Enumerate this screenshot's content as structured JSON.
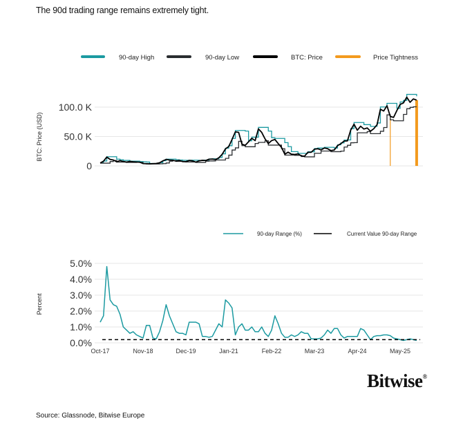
{
  "title": "The 90d trading range remains extremely tight.",
  "source": "Source: Glassnode, Bitwise Europe",
  "logo": {
    "text": "Bitwise",
    "mark": "®"
  },
  "colors": {
    "high": "#1b9aa1",
    "low": "#2a2d30",
    "price": "#000000",
    "tightness": "#f39a1e",
    "range": "#1b9aa1",
    "current": "#000000",
    "grid": "#e6e6e6"
  },
  "chart_data": [
    {
      "type": "line",
      "ylabel": "BTC: Price (USD)",
      "ylim": [
        0,
        125000
      ],
      "yticks": [
        {
          "value": 0,
          "label": "0"
        },
        {
          "value": 50000,
          "label": "50.0 K"
        },
        {
          "value": 100000,
          "label": "100.0 K"
        }
      ],
      "grid": true,
      "legend_position": "top",
      "legend": [
        "90-day High",
        "90-day Low",
        "BTC: Price",
        "Price Tightness"
      ],
      "x_start": "2017-10",
      "x_step": "month",
      "series": [
        {
          "name": "BTC: Price",
          "values": [
            5000,
            8000,
            15000,
            11000,
            10000,
            7000,
            9000,
            7500,
            6400,
            7700,
            7000,
            6600,
            6300,
            4000,
            3700,
            3450,
            3800,
            4100,
            5300,
            8500,
            11000,
            10000,
            9600,
            8300,
            9200,
            7500,
            7200,
            9300,
            8600,
            6400,
            8600,
            9500,
            9100,
            11300,
            11600,
            10800,
            13800,
            19700,
            29000,
            33000,
            45000,
            58000,
            57000,
            37000,
            35000,
            41000,
            47000,
            43000,
            63000,
            57000,
            46000,
            38000,
            43000,
            45000,
            38000,
            31500,
            19800,
            23300,
            20000,
            19400,
            20500,
            17100,
            16500,
            23100,
            23100,
            28400,
            29200,
            27200,
            30400,
            29200,
            26000,
            27000,
            34500,
            37700,
            42300,
            42500,
            61000,
            71000,
            60600,
            67500,
            62700,
            64600,
            59000,
            63300,
            70200,
            96400,
            93400,
            102400,
            84300,
            82500,
            94200,
            104600,
            107100,
            117000,
            108200,
            114000,
            112000
          ]
        },
        {
          "name": "Price Tightness",
          "events": [
            {
              "date": "2025-02",
              "value": 82000
            },
            {
              "date": "2025-10",
              "value": 112000
            }
          ]
        }
      ]
    },
    {
      "type": "line",
      "ylabel": "Percent",
      "ylim": [
        0,
        5
      ],
      "yticks": [
        {
          "value": 0,
          "label": "0.0%"
        },
        {
          "value": 1,
          "label": "1.0%"
        },
        {
          "value": 2,
          "label": "2.0%"
        },
        {
          "value": 3,
          "label": "3.0%"
        },
        {
          "value": 4,
          "label": "4.0%"
        },
        {
          "value": 5,
          "label": "5.0%"
        }
      ],
      "xticks": [
        "Oct-17",
        "Nov-18",
        "Dec-19",
        "Jan-21",
        "Feb-22",
        "Mar-23",
        "Apr-24",
        "May-25"
      ],
      "grid": true,
      "legend_position": "top",
      "legend": [
        "90-day Range (%)",
        "Current Value 90-day Range"
      ],
      "x_start": "2017-10",
      "x_step": "month",
      "series": [
        {
          "name": "90-day Range (%)",
          "values": [
            1.3,
            1.7,
            4.8,
            2.7,
            2.4,
            2.3,
            1.8,
            1.0,
            0.8,
            0.6,
            0.7,
            0.5,
            0.4,
            0.3,
            1.1,
            1.1,
            0.3,
            0.25,
            0.7,
            1.4,
            2.4,
            1.7,
            1.2,
            0.7,
            0.6,
            0.6,
            0.5,
            1.3,
            1.3,
            1.3,
            1.2,
            0.4,
            0.4,
            0.35,
            0.4,
            0.8,
            1.2,
            1.0,
            2.7,
            2.5,
            2.2,
            0.5,
            1.0,
            1.2,
            0.8,
            0.8,
            1.0,
            0.7,
            0.7,
            1.0,
            0.6,
            0.4,
            0.8,
            1.7,
            1.2,
            0.6,
            0.35,
            0.35,
            0.5,
            0.4,
            0.5,
            0.7,
            0.6,
            0.6,
            0.25,
            0.25,
            0.25,
            0.3,
            0.5,
            0.8,
            0.6,
            0.9,
            0.9,
            0.5,
            0.3,
            0.4,
            0.4,
            0.4,
            0.4,
            0.9,
            0.8,
            0.5,
            0.2,
            0.4,
            0.45,
            0.45,
            0.5,
            0.5,
            0.45,
            0.3,
            0.25,
            0.2,
            0.15,
            0.2,
            0.25,
            0.2,
            0.15
          ]
        },
        {
          "name": "Current Value 90-day Range",
          "value": 0.2
        }
      ]
    }
  ]
}
